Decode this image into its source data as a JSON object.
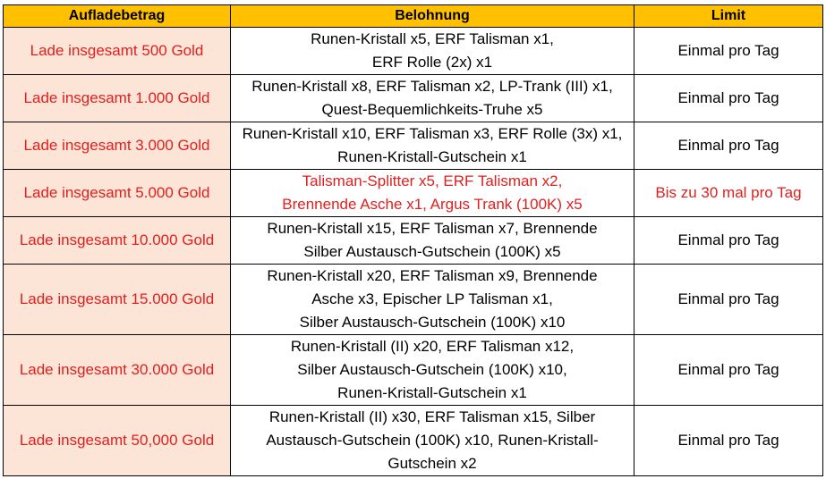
{
  "headers": [
    "Aufladebetrag",
    "Belohnung",
    "Limit"
  ],
  "rows": [
    {
      "amount": "Lade insgesamt 500 Gold",
      "reward": [
        "Runen-Kristall x5, ERF Talisman x1,",
        "ERF Rolle (2x) x1"
      ],
      "limit": "Einmal pro Tag"
    },
    {
      "amount": "Lade insgesamt 1.000 Gold",
      "reward": [
        "Runen-Kristall x8, ERF Talisman x2, LP-Trank (III) x1,",
        "Quest-Bequemlichkeits-Truhe x5"
      ],
      "limit": "Einmal pro Tag"
    },
    {
      "amount": "Lade insgesamt 3.000 Gold",
      "reward": [
        "Runen-Kristall x10, ERF Talisman x3, ERF Rolle (3x) x1,",
        "Runen-Kristall-Gutschein x1"
      ],
      "limit": "Einmal pro Tag"
    },
    {
      "amount": "Lade insgesamt 5.000 Gold",
      "reward": [
        "Talisman-Splitter x5, ERF Talisman x2,",
        "Brennende Asche x1, Argus Trank (100K) x5"
      ],
      "limit": "Bis zu 30 mal pro Tag"
    },
    {
      "amount": "Lade insgesamt 10.000 Gold",
      "reward": [
        "Runen-Kristall x15, ERF Talisman x7, Brennende",
        "Silber Austausch-Gutschein (100K) x5"
      ],
      "limit": "Einmal pro Tag"
    },
    {
      "amount": "Lade insgesamt 15.000 Gold",
      "reward": [
        "Runen-Kristall x20, ERF Talisman x9, Brennende",
        "Asche x3, Epischer LP Talisman x1,",
        "Silber Austausch-Gutschein (100K) x10"
      ],
      "limit": "Einmal pro Tag"
    },
    {
      "amount": "Lade insgesamt 30.000 Gold",
      "reward": [
        "Runen-Kristall (II) x20, ERF Talisman x12,",
        "Silber Austausch-Gutschein (100K) x10,",
        "Runen-Kristall-Gutschein x1"
      ],
      "limit": "Einmal pro Tag"
    },
    {
      "amount": "Lade insgesamt 50,000 Gold",
      "reward": [
        "Runen-Kristall (II) x30, ERF Talisman x15, Silber",
        "Austausch-Gutschein (100K) x10, Runen-Kristall-",
        "Gutschein x2"
      ],
      "limit": "Einmal pro Tag"
    }
  ],
  "colors": {
    "header_bg": "#ffc000",
    "amount_bg": "#fce4d6",
    "accent_red": "#e02020"
  }
}
